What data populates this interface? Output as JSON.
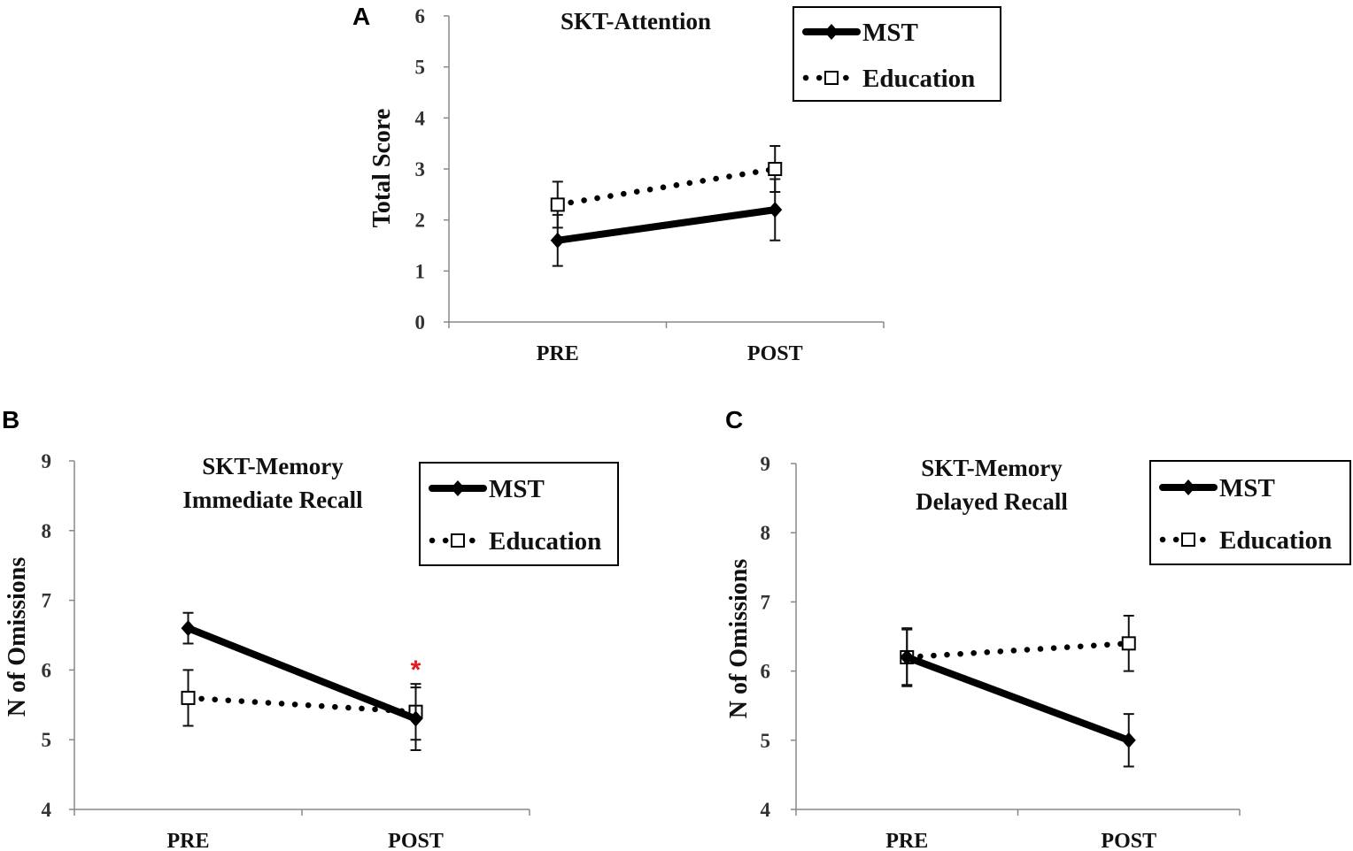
{
  "chart_data": [
    {
      "panel": "A",
      "type": "line",
      "title": [
        "SKT-Attention"
      ],
      "ylabel": "Total Score",
      "xlabel": "",
      "categories": [
        "PRE",
        "POST"
      ],
      "ylim": [
        0,
        6
      ],
      "yticks": [
        "0",
        "1",
        "2",
        "3",
        "4",
        "5",
        "6"
      ],
      "series": [
        {
          "name": "MST",
          "values": [
            1.6,
            2.2
          ],
          "error": [
            0.5,
            0.6
          ]
        },
        {
          "name": "Education",
          "values": [
            2.3,
            3.0
          ],
          "error": [
            0.45,
            0.45
          ]
        }
      ],
      "annotations": []
    },
    {
      "panel": "B",
      "type": "line",
      "title": [
        "SKT-Memory",
        "Immediate Recall"
      ],
      "ylabel": "N of Omissions",
      "xlabel": "",
      "categories": [
        "PRE",
        "POST"
      ],
      "ylim": [
        4,
        9
      ],
      "yticks": [
        "4",
        "5",
        "6",
        "7",
        "8",
        "9"
      ],
      "series": [
        {
          "name": "MST",
          "values": [
            6.6,
            5.3
          ],
          "error": [
            0.22,
            0.45
          ]
        },
        {
          "name": "Education",
          "values": [
            5.6,
            5.4
          ],
          "error": [
            0.4,
            0.4
          ]
        }
      ],
      "annotations": [
        {
          "text": "*",
          "category": "POST",
          "color": "#e21b1b"
        }
      ]
    },
    {
      "panel": "C",
      "type": "line",
      "title": [
        "SKT-Memory",
        "Delayed Recall"
      ],
      "ylabel": "N of Omissions",
      "xlabel": "",
      "categories": [
        "PRE",
        "POST"
      ],
      "ylim": [
        4,
        9
      ],
      "yticks": [
        "4",
        "5",
        "6",
        "7",
        "8",
        "9"
      ],
      "series": [
        {
          "name": "MST",
          "values": [
            6.2,
            5.0
          ],
          "error": [
            0.42,
            0.38
          ]
        },
        {
          "name": "Education",
          "values": [
            6.2,
            6.4
          ],
          "error": [
            0.4,
            0.4
          ]
        }
      ],
      "annotations": []
    }
  ],
  "legend": {
    "mst": "MST",
    "education": "Education"
  },
  "colors": {
    "significance": "#e21b1b"
  }
}
